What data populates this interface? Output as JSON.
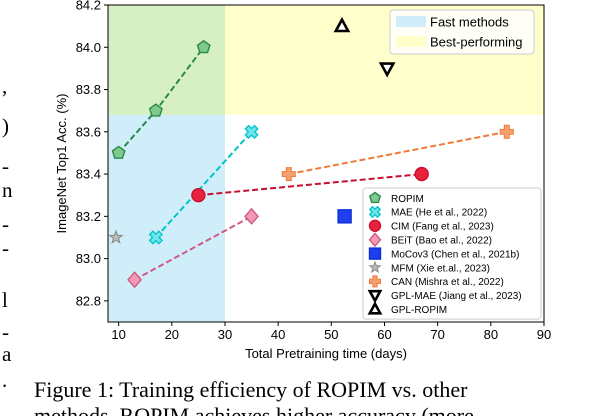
{
  "chart_data": {
    "type": "scatter",
    "xlabel": "Total Pretraining time (days)",
    "ylabel": "ImageNet Top1 Acc. (%)",
    "xlim": [
      8,
      90
    ],
    "ylim": [
      82.7,
      84.2
    ],
    "x_ticks": [
      "10",
      "20",
      "30",
      "40",
      "50",
      "60",
      "70",
      "80",
      "90"
    ],
    "y_ticks": [
      "82.8",
      "83.0",
      "83.2",
      "83.4",
      "83.6",
      "83.8",
      "84.0",
      "84.2"
    ],
    "regions": [
      {
        "name": "Fast methods",
        "color": "#cfeefa",
        "x_range": [
          8,
          30
        ],
        "y_range": [
          82.7,
          83.68
        ]
      },
      {
        "name": "Best-performing",
        "color": "#ffffcc",
        "x_range": [
          30,
          90
        ],
        "y_range": [
          83.68,
          84.2
        ]
      },
      {
        "name": "",
        "color": "#d6efc3",
        "x_range": [
          8,
          30
        ],
        "y_range": [
          83.68,
          84.2
        ]
      }
    ],
    "series": [
      {
        "name": "ROPIM",
        "color": "#2a8a4a",
        "fill": "#7fc98f",
        "marker": "pentagon",
        "points": [
          [
            10,
            83.5
          ],
          [
            17,
            83.7
          ],
          [
            26,
            84.0
          ]
        ],
        "connected": true
      },
      {
        "name": "MAE (He et al., 2022)",
        "color": "#00c4cc",
        "fill": "#6fe3e8",
        "marker": "x-filled",
        "points": [
          [
            17,
            83.1
          ],
          [
            35,
            83.6
          ]
        ],
        "connected": true
      },
      {
        "name": "CIM (Fang et al., 2023)",
        "color": "#c8102e",
        "fill": "#e8213f",
        "marker": "circle",
        "points": [
          [
            25,
            83.3
          ],
          [
            67,
            83.4
          ]
        ],
        "connected": true
      },
      {
        "name": "BEiT (Bao et al., 2022)",
        "color": "#d05a80",
        "fill": "#f29ab5",
        "marker": "diamond",
        "points": [
          [
            13,
            82.9
          ],
          [
            35,
            83.2
          ]
        ],
        "connected": true
      },
      {
        "name": "MoCov3 (Chen et al., 2021b)",
        "color": "#0a2fd8",
        "fill": "#1d3ff0",
        "marker": "square",
        "points": [
          [
            52.5,
            83.2
          ]
        ],
        "connected": false
      },
      {
        "name": "MFM (Xie et.al., 2023)",
        "color": "#888888",
        "fill": "#bbbbbb",
        "marker": "star",
        "points": [
          [
            9.5,
            83.1
          ]
        ],
        "connected": false
      },
      {
        "name": "CAN (Mishra et al., 2022)",
        "color": "#f07a3a",
        "fill": "#f6a070",
        "marker": "plus",
        "points": [
          [
            42,
            83.4
          ],
          [
            83,
            83.6
          ]
        ],
        "connected": true
      },
      {
        "name": "GPL-MAE (Jiang et al., 2023)",
        "color": "#000000",
        "fill": "#ffffff",
        "marker": "triangle-down",
        "points": [
          [
            60.5,
            83.9
          ]
        ],
        "connected": false
      },
      {
        "name": "GPL-ROPIM",
        "color": "#000000",
        "fill": "#ffffff",
        "marker": "triangle-up",
        "points": [
          [
            52,
            84.1
          ]
        ],
        "connected": false
      }
    ]
  },
  "side_text": [
    ",",
    ")",
    "-",
    "n",
    "-",
    "-",
    "l",
    "-",
    "a",
    "."
  ],
  "caption": {
    "line1": "Figure 1: Training efficiency of ROPIM vs. other",
    "line2": "methods. ROPIM achieves higher accuracy (more"
  }
}
